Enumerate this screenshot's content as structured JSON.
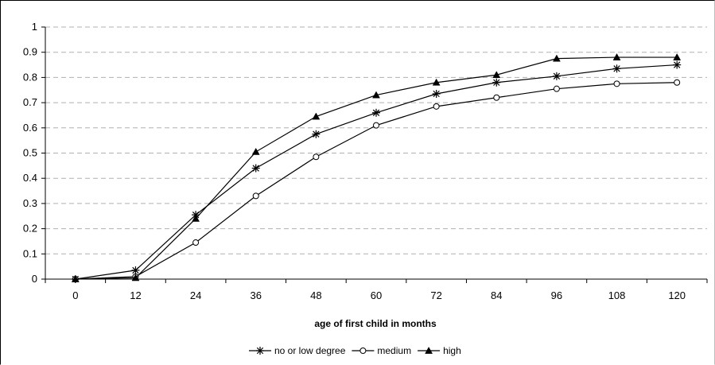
{
  "chart_data": {
    "type": "line",
    "title": "",
    "xlabel": "age of first child in months",
    "ylabel": "",
    "x": [
      0,
      12,
      24,
      36,
      48,
      60,
      72,
      84,
      96,
      108,
      120
    ],
    "x_tick_labels": [
      "0",
      "12",
      "24",
      "36",
      "48",
      "60",
      "72",
      "84",
      "96",
      "108",
      "120"
    ],
    "y_tick_labels": [
      "0",
      "0.1",
      "0.2",
      "0.3",
      "0.4",
      "0.5",
      "0.6",
      "0.7",
      "0.8",
      "0.9",
      "1"
    ],
    "ylim": [
      0,
      1
    ],
    "grid": "horizontal dashed",
    "legend_position": "bottom",
    "series": [
      {
        "name": "no or low degree",
        "marker": "star",
        "values": [
          0.0,
          0.035,
          0.255,
          0.44,
          0.575,
          0.66,
          0.735,
          0.78,
          0.805,
          0.835,
          0.85
        ]
      },
      {
        "name": "medium",
        "marker": "open-circle",
        "values": [
          0.0,
          0.01,
          0.145,
          0.33,
          0.485,
          0.61,
          0.685,
          0.72,
          0.755,
          0.775,
          0.78
        ]
      },
      {
        "name": "high",
        "marker": "filled-triangle",
        "values": [
          0.0,
          0.005,
          0.24,
          0.505,
          0.645,
          0.73,
          0.78,
          0.81,
          0.875,
          0.88,
          0.88
        ]
      }
    ],
    "colors": {
      "line": "#000000",
      "grid": "#b0b0b0",
      "background": "#ffffff"
    }
  }
}
